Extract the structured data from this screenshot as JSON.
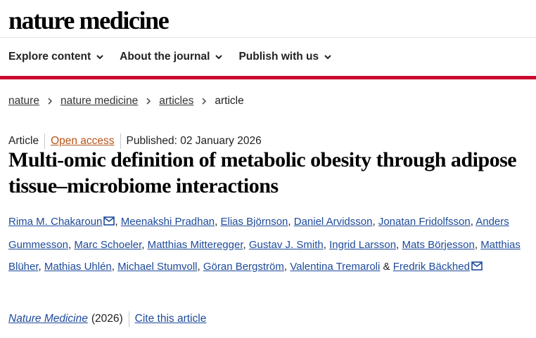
{
  "header": {
    "logo_text": "nature medicine"
  },
  "nav": {
    "items": [
      {
        "label": "Explore content",
        "icon": "chevron-down-icon"
      },
      {
        "label": "About the journal",
        "icon": "chevron-down-icon"
      },
      {
        "label": "Publish with us",
        "icon": "chevron-down-icon"
      }
    ]
  },
  "colors": {
    "accent_bar": "#cc0a2f",
    "link": "#1d4a9a",
    "open_access": "#b5541a"
  },
  "breadcrumb": {
    "items": [
      "nature",
      "nature medicine",
      "articles"
    ],
    "current": "article"
  },
  "article": {
    "type": "Article",
    "access": "Open access",
    "published": "Published: 02 January 2026",
    "title": "Multi-omic definition of metabolic obesity through adipose tissue–microbiome interactions",
    "authors": [
      "Rima M. Chakaroun",
      "Meenakshi Pradhan",
      "Elias Björnson",
      "Daniel Arvidsson",
      "Jonatan Fridolfsson",
      "Anders Gummesson",
      "Marc Schoeler",
      "Matthias Mitteregger",
      "Gustav J. Smith",
      "Ingrid Larsson",
      "Mats Börjesson",
      "Matthias Blüher",
      "Mathias Uhlén",
      "Michael Stumvoll",
      "Göran Bergström",
      "Valentina Tremaroli",
      "Fredrik Bäckhed"
    ],
    "author_separator": ", ",
    "author_last_separator": " & ",
    "corresponding_icon": "mail-icon",
    "journal": "Nature Medicine",
    "year": "(2026)",
    "cite_label": "Cite this article"
  }
}
